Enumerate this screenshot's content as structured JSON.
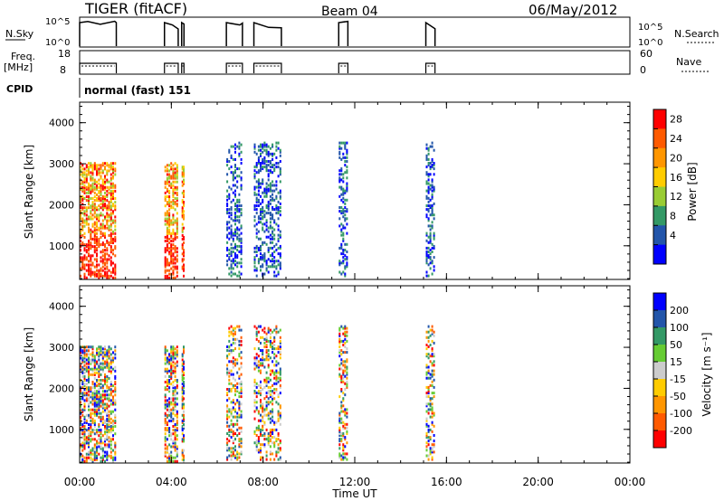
{
  "header": {
    "station": "TIGER (fitACF)",
    "beam": "Beam 04",
    "date": "06/May/2012"
  },
  "panels": {
    "nsky_label": "N.Sky",
    "nsky_ticks": [
      "10^5",
      "10^0"
    ],
    "nsearch_label": "N.Search",
    "nsearch_ticks": [
      "10^5",
      "10^0"
    ],
    "freq_label": "Freq.",
    "freq_unit": "[MHz]",
    "freq_ticks": [
      "18",
      "8"
    ],
    "nave_label": "Nave",
    "nave_ticks": [
      "60",
      "0"
    ],
    "cpid_label": "CPID",
    "cpid_value": "normal (fast) 151"
  },
  "axes": {
    "y_label": "Slant Range [km]",
    "y_ticks": [
      "4000",
      "3000",
      "2000",
      "1000"
    ],
    "x_label": "Time UT",
    "x_ticks": [
      "00:00",
      "04:00",
      "08:00",
      "12:00",
      "16:00",
      "20:00",
      "00:00"
    ]
  },
  "power_scale": {
    "label": "Power [dB]",
    "ticks": [
      "28",
      "24",
      "20",
      "16",
      "12",
      "8",
      "4"
    ],
    "colors": [
      "#ff0000",
      "#ff5a00",
      "#ff9600",
      "#ffcc00",
      "#99cc33",
      "#339966",
      "#2255aa",
      "#0000ff"
    ]
  },
  "velocity_scale": {
    "label": "Velocity [m s⁻¹]",
    "ticks": [
      "200",
      "100",
      "50",
      "15",
      "-15",
      "-50",
      "-100",
      "-200"
    ],
    "colors": [
      "#0000ff",
      "#2255aa",
      "#339966",
      "#66cc33",
      "#cccccc",
      "#ffcc00",
      "#ff9600",
      "#ff5a00",
      "#ff0000"
    ]
  },
  "chart_data": {
    "type": "heatmap",
    "x_range_hours": [
      0,
      24
    ],
    "y_range_km": [
      180,
      4500
    ],
    "data_blocks_hours": [
      [
        0.0,
        1.6
      ],
      [
        3.7,
        4.3
      ],
      [
        4.45,
        4.55
      ],
      [
        6.4,
        7.1
      ],
      [
        7.6,
        8.8
      ],
      [
        11.3,
        11.7
      ],
      [
        15.1,
        15.5
      ]
    ]
  }
}
